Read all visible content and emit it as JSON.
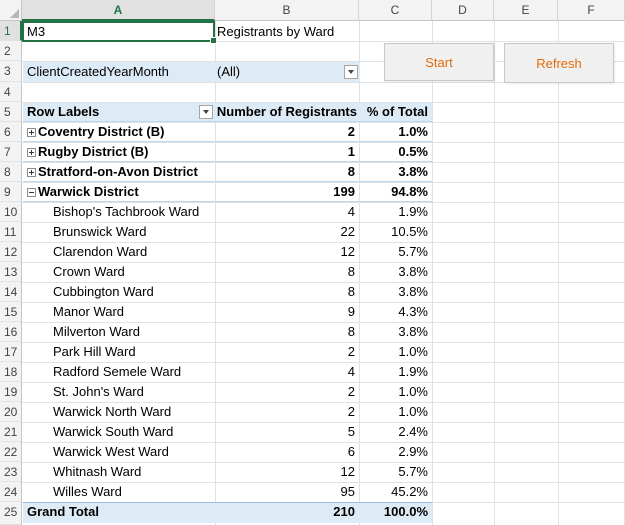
{
  "columns": [
    "A",
    "B",
    "C",
    "D",
    "E",
    "F"
  ],
  "rows": [
    "1",
    "2",
    "3",
    "4",
    "5",
    "6",
    "7",
    "8",
    "9",
    "10",
    "11",
    "12",
    "13",
    "14",
    "15",
    "16",
    "17",
    "18",
    "19",
    "20",
    "21",
    "22",
    "23",
    "24",
    "25"
  ],
  "sheet": {
    "a1": "M3",
    "b1": "Registrants by Ward",
    "filter_field": "ClientCreatedYearMonth",
    "filter_value": "(All)"
  },
  "buttons": {
    "start": "Start",
    "refresh": "Refresh"
  },
  "pivot": {
    "header": {
      "row_labels": "Row Labels",
      "registrants": "Number of Registrants",
      "pct": "% of Total"
    },
    "rows": [
      {
        "label": "Coventry District (B)",
        "registrants": "2",
        "pct": "1.0%"
      },
      {
        "label": "Rugby District (B)",
        "registrants": "1",
        "pct": "0.5%"
      },
      {
        "label": "Stratford-on-Avon District",
        "registrants": "8",
        "pct": "3.8%"
      },
      {
        "label": "Warwick District",
        "registrants": "199",
        "pct": "94.8%"
      },
      {
        "label": "Bishop's Tachbrook Ward",
        "registrants": "4",
        "pct": "1.9%"
      },
      {
        "label": "Brunswick Ward",
        "registrants": "22",
        "pct": "10.5%"
      },
      {
        "label": "Clarendon Ward",
        "registrants": "12",
        "pct": "5.7%"
      },
      {
        "label": "Crown Ward",
        "registrants": "8",
        "pct": "3.8%"
      },
      {
        "label": "Cubbington Ward",
        "registrants": "8",
        "pct": "3.8%"
      },
      {
        "label": "Manor Ward",
        "registrants": "9",
        "pct": "4.3%"
      },
      {
        "label": "Milverton Ward",
        "registrants": "8",
        "pct": "3.8%"
      },
      {
        "label": "Park Hill Ward",
        "registrants": "2",
        "pct": "1.0%"
      },
      {
        "label": "Radford Semele Ward",
        "registrants": "4",
        "pct": "1.9%"
      },
      {
        "label": "St. John's Ward",
        "registrants": "2",
        "pct": "1.0%"
      },
      {
        "label": "Warwick North Ward",
        "registrants": "2",
        "pct": "1.0%"
      },
      {
        "label": "Warwick South Ward",
        "registrants": "5",
        "pct": "2.4%"
      },
      {
        "label": "Warwick West Ward",
        "registrants": "6",
        "pct": "2.9%"
      },
      {
        "label": "Whitnash Ward",
        "registrants": "12",
        "pct": "5.7%"
      },
      {
        "label": "Willes Ward",
        "registrants": "95",
        "pct": "45.2%"
      }
    ],
    "total": {
      "label": "Grand Total",
      "registrants": "210",
      "pct": "100.0%"
    }
  },
  "colors": {
    "pivot_band": "#ddebf7",
    "button_text": "#e36c0a",
    "selection": "#217346"
  }
}
